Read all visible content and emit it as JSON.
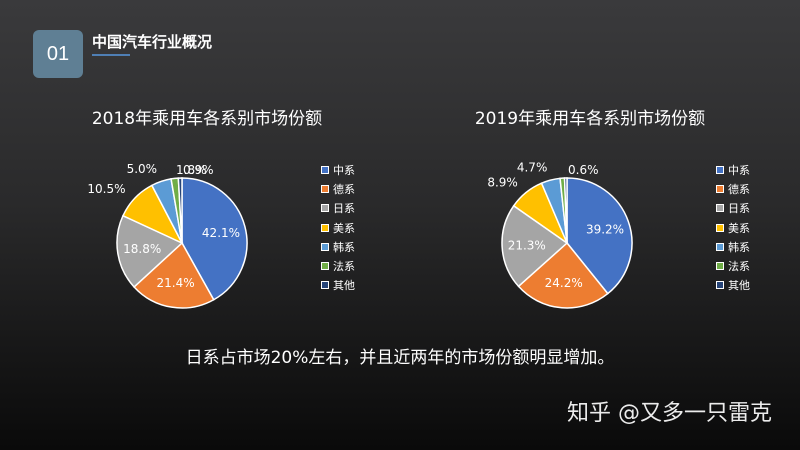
{
  "header": {
    "number": "01",
    "title": "中国汽车行业概况"
  },
  "colors": [
    "#4472c4",
    "#ed7d31",
    "#a5a5a5",
    "#ffc000",
    "#5b9bd5",
    "#70ad47",
    "#264478"
  ],
  "chart_data": [
    {
      "type": "pie",
      "title": "2018年乘用车各系别市场份额",
      "categories": [
        "中系",
        "德系",
        "日系",
        "美系",
        "韩系",
        "法系",
        "其他"
      ],
      "values": [
        42.1,
        21.4,
        18.8,
        10.5,
        5.0,
        1.8,
        0.9
      ],
      "labels": [
        "42.1%",
        "21.4%",
        "18.8%",
        "10.5%",
        "5.0%",
        "1.8%",
        "0.9%"
      ],
      "legend": "right"
    },
    {
      "type": "pie",
      "title": "2019年乘用车各系别市场份额",
      "categories": [
        "中系",
        "德系",
        "日系",
        "美系",
        "韩系",
        "法系",
        "其他"
      ],
      "values": [
        39.2,
        24.2,
        21.3,
        8.9,
        4.7,
        1.1,
        0.6
      ],
      "labels": [
        "39.2%",
        "24.2%",
        "21.3%",
        "8.9%",
        "4.7%",
        "",
        "0.6%"
      ],
      "legend": "right"
    }
  ],
  "caption": "日系占市场20%左右，并且近两年的市场份额明显增加。",
  "watermark": "知乎 @又多一只雷克"
}
